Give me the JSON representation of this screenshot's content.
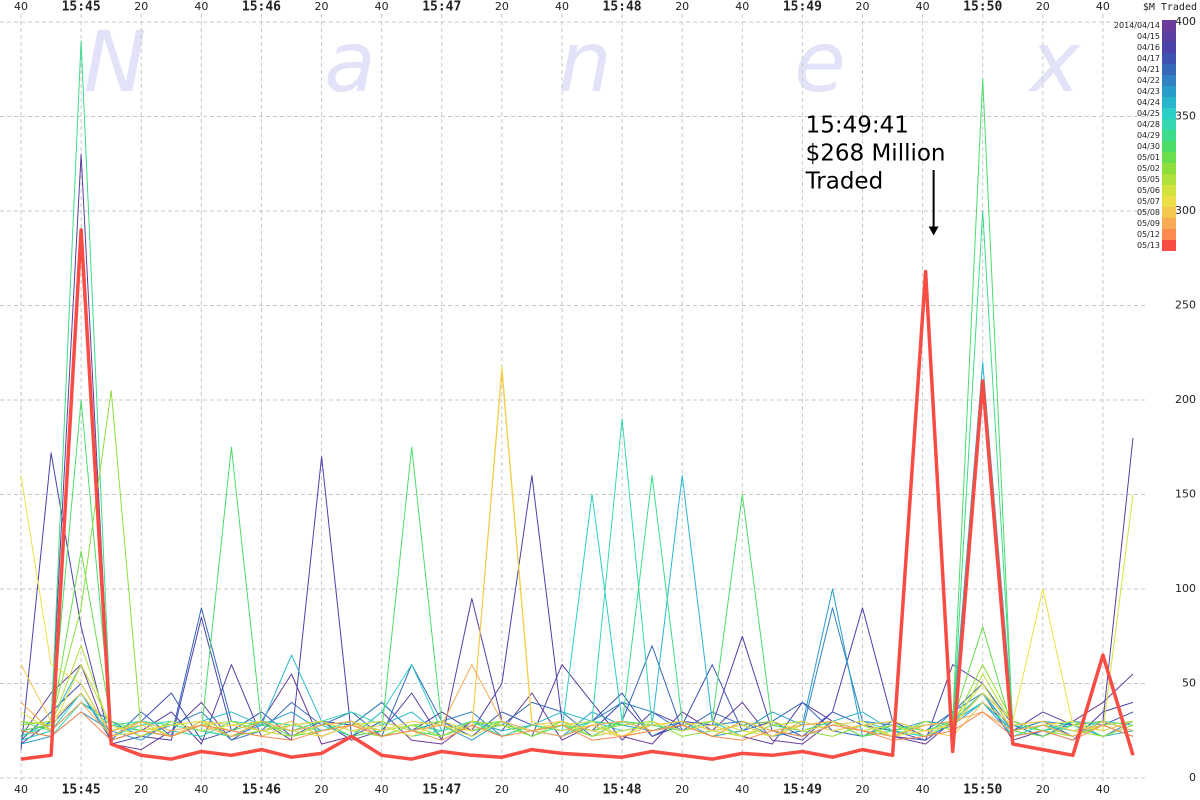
{
  "chart_data": {
    "type": "line",
    "ylabel": "$M Traded",
    "watermark": [
      "N",
      "a",
      "n",
      "e",
      "x"
    ],
    "annotation": {
      "x": "15:49:41",
      "y": 268,
      "lines": [
        "15:49:41",
        "$268 Million",
        "Traded"
      ]
    },
    "x": [
      "15:44:40",
      "15:44:50",
      "15:45:00",
      "15:45:10",
      "15:45:20",
      "15:45:30",
      "15:45:40",
      "15:45:50",
      "15:46:00",
      "15:46:10",
      "15:46:20",
      "15:46:30",
      "15:46:40",
      "15:46:50",
      "15:47:00",
      "15:47:10",
      "15:47:20",
      "15:47:30",
      "15:47:40",
      "15:47:50",
      "15:48:00",
      "15:48:10",
      "15:48:20",
      "15:48:30",
      "15:48:40",
      "15:48:50",
      "15:49:00",
      "15:49:10",
      "15:49:20",
      "15:49:30",
      "15:49:41",
      "15:49:50",
      "15:50:00",
      "15:50:10",
      "15:50:20",
      "15:50:30",
      "15:50:40",
      "15:50:50"
    ],
    "xlim": [
      "15:44:33",
      "15:50:55"
    ],
    "xticks": [
      {
        "value": "15:44:40",
        "label": "40"
      },
      {
        "value": "15:45:00",
        "label": "15:45"
      },
      {
        "value": "15:45:20",
        "label": "20"
      },
      {
        "value": "15:45:40",
        "label": "40"
      },
      {
        "value": "15:46:00",
        "label": "15:46"
      },
      {
        "value": "15:46:20",
        "label": "20"
      },
      {
        "value": "15:46:40",
        "label": "40"
      },
      {
        "value": "15:47:00",
        "label": "15:47"
      },
      {
        "value": "15:47:20",
        "label": "20"
      },
      {
        "value": "15:47:40",
        "label": "40"
      },
      {
        "value": "15:48:00",
        "label": "15:48"
      },
      {
        "value": "15:48:20",
        "label": "20"
      },
      {
        "value": "15:48:40",
        "label": "40"
      },
      {
        "value": "15:49:00",
        "label": "15:49"
      },
      {
        "value": "15:49:20",
        "label": "20"
      },
      {
        "value": "15:49:40",
        "label": "40"
      },
      {
        "value": "15:50:00",
        "label": "15:50"
      },
      {
        "value": "15:50:20",
        "label": "20"
      },
      {
        "value": "15:50:40",
        "label": "40"
      }
    ],
    "ylim": [
      0,
      400
    ],
    "yticks": [
      0,
      50,
      100,
      150,
      200,
      250,
      300,
      350,
      400
    ],
    "grid": true,
    "legend": "top-right",
    "series": [
      {
        "name": "2014/04/14",
        "color": "#6a3d9a",
        "values": [
          22,
          45,
          60,
          18,
          15,
          25,
          40,
          20,
          30,
          55,
          18,
          22,
          35,
          20,
          18,
          30,
          25,
          45,
          20,
          28,
          22,
          18,
          35,
          25,
          40,
          20,
          18,
          30,
          25,
          22,
          18,
          30,
          45,
          20,
          25,
          30,
          40,
          55
        ]
      },
      {
        "name": "04/15",
        "color": "#5a3ea0",
        "values": [
          18,
          30,
          330,
          20,
          25,
          35,
          18,
          60,
          22,
          28,
          30,
          20,
          25,
          45,
          20,
          95,
          30,
          22,
          60,
          40,
          20,
          35,
          28,
          30,
          22,
          18,
          40,
          30,
          25,
          22,
          20,
          60,
          50,
          25,
          35,
          28,
          30,
          180
        ]
      },
      {
        "name": "04/16",
        "color": "#4a42aa",
        "values": [
          15,
          172,
          80,
          18,
          22,
          20,
          85,
          25,
          30,
          20,
          170,
          22,
          30,
          25,
          35,
          25,
          50,
          160,
          30,
          25,
          40,
          22,
          30,
          28,
          75,
          25,
          20,
          35,
          90,
          30,
          22,
          28,
          45,
          30,
          25,
          20,
          35,
          40
        ]
      },
      {
        "name": "04/17",
        "color": "#3e52b2",
        "values": [
          20,
          35,
          50,
          22,
          30,
          45,
          20,
          25,
          35,
          22,
          30,
          28,
          40,
          25,
          30,
          22,
          35,
          28,
          25,
          30,
          45,
          22,
          28,
          60,
          25,
          30,
          22,
          35,
          28,
          25,
          20,
          30,
          40,
          25,
          30,
          22,
          28,
          35
        ]
      },
      {
        "name": "04/21",
        "color": "#3668b8",
        "values": [
          25,
          28,
          45,
          20,
          35,
          22,
          90,
          30,
          25,
          40,
          28,
          35,
          22,
          60,
          30,
          25,
          28,
          40,
          35,
          22,
          30,
          70,
          25,
          35,
          28,
          30,
          40,
          25,
          22,
          30,
          25,
          35,
          50,
          28,
          22,
          30,
          25,
          30
        ]
      },
      {
        "name": "04/22",
        "color": "#3082c2",
        "values": [
          20,
          25,
          40,
          30,
          22,
          28,
          35,
          20,
          25,
          30,
          22,
          28,
          40,
          25,
          30,
          35,
          22,
          28,
          25,
          30,
          40,
          35,
          25,
          28,
          30,
          22,
          25,
          90,
          30,
          28,
          22,
          35,
          45,
          25,
          30,
          28,
          22,
          30
        ]
      },
      {
        "name": "04/23",
        "color": "#2a9cca",
        "values": [
          18,
          22,
          35,
          25,
          20,
          30,
          25,
          22,
          28,
          35,
          25,
          30,
          22,
          25,
          28,
          20,
          30,
          25,
          22,
          35,
          28,
          25,
          30,
          22,
          25,
          35,
          28,
          100,
          22,
          25,
          30,
          28,
          40,
          22,
          25,
          30,
          28,
          22
        ]
      },
      {
        "name": "04/24",
        "color": "#28b6ce",
        "values": [
          22,
          30,
          60,
          28,
          25,
          22,
          30,
          35,
          28,
          65,
          30,
          25,
          28,
          35,
          22,
          30,
          25,
          28,
          35,
          30,
          25,
          28,
          160,
          30,
          22,
          28,
          25,
          30,
          35,
          25,
          22,
          28,
          220,
          30,
          25,
          28,
          22,
          25
        ]
      },
      {
        "name": "04/25",
        "color": "#2ccfc8",
        "values": [
          20,
          25,
          45,
          22,
          28,
          30,
          25,
          22,
          30,
          25,
          28,
          22,
          35,
          60,
          25,
          30,
          22,
          28,
          25,
          150,
          30,
          25,
          28,
          22,
          30,
          25,
          22,
          28,
          30,
          25,
          22,
          30,
          40,
          25,
          28,
          22,
          30,
          25
        ]
      },
      {
        "name": "04/28",
        "color": "#34d8b0",
        "values": [
          25,
          22,
          40,
          28,
          30,
          25,
          22,
          30,
          28,
          25,
          30,
          35,
          28,
          22,
          25,
          30,
          28,
          25,
          22,
          30,
          190,
          28,
          25,
          30,
          22,
          28,
          25,
          30,
          22,
          28,
          25,
          30,
          45,
          22,
          28,
          25,
          30,
          28
        ]
      },
      {
        "name": "04/29",
        "color": "#3cdc8c",
        "values": [
          22,
          28,
          390,
          25,
          30,
          28,
          25,
          22,
          30,
          28,
          25,
          30,
          22,
          28,
          25,
          30,
          22,
          28,
          25,
          30,
          28,
          160,
          30,
          25,
          28,
          22,
          30,
          25,
          28,
          22,
          30,
          25,
          300,
          28,
          25,
          30,
          22,
          28
        ]
      },
      {
        "name": "04/30",
        "color": "#4cdc6a",
        "values": [
          30,
          25,
          200,
          28,
          22,
          30,
          25,
          175,
          28,
          25,
          30,
          22,
          25,
          175,
          28,
          25,
          30,
          22,
          28,
          25,
          30,
          28,
          25,
          30,
          150,
          28,
          25,
          30,
          22,
          28,
          25,
          30,
          370,
          25,
          28,
          22,
          30,
          25
        ]
      },
      {
        "name": "05/01",
        "color": "#6ade4c",
        "values": [
          25,
          28,
          120,
          30,
          25,
          22,
          28,
          25,
          30,
          22,
          25,
          28,
          30,
          25,
          22,
          28,
          30,
          25,
          28,
          22,
          30,
          25,
          28,
          22,
          30,
          25,
          28,
          30,
          22,
          25,
          28,
          30,
          80,
          25,
          22,
          28,
          30,
          25
        ]
      },
      {
        "name": "05/02",
        "color": "#8ede3c",
        "values": [
          28,
          30,
          90,
          205,
          25,
          28,
          30,
          22,
          25,
          28,
          30,
          25,
          22,
          28,
          30,
          25,
          28,
          22,
          30,
          25,
          28,
          30,
          22,
          25,
          28,
          30,
          25,
          22,
          28,
          30,
          25,
          28,
          60,
          30,
          25,
          22,
          28,
          30
        ]
      },
      {
        "name": "05/05",
        "color": "#b0e03a",
        "values": [
          30,
          28,
          70,
          25,
          30,
          22,
          28,
          30,
          25,
          22,
          28,
          30,
          25,
          28,
          22,
          30,
          28,
          25,
          30,
          22,
          25,
          28,
          30,
          25,
          22,
          28,
          30,
          25,
          28,
          22,
          30,
          25,
          55,
          28,
          30,
          25,
          22,
          28
        ]
      },
      {
        "name": "05/06",
        "color": "#d4e23e",
        "values": [
          35,
          25,
          60,
          28,
          22,
          30,
          25,
          28,
          30,
          25,
          22,
          28,
          30,
          25,
          28,
          22,
          30,
          25,
          28,
          30,
          22,
          25,
          28,
          30,
          25,
          22,
          28,
          30,
          25,
          28,
          22,
          30,
          50,
          25,
          28,
          30,
          25,
          150
        ]
      },
      {
        "name": "05/07",
        "color": "#ecde48",
        "values": [
          160,
          60,
          50,
          22,
          25,
          28,
          30,
          25,
          22,
          28,
          30,
          25,
          28,
          22,
          30,
          25,
          218,
          30,
          25,
          28,
          22,
          30,
          25,
          28,
          22,
          30,
          25,
          28,
          30,
          22,
          25,
          28,
          45,
          30,
          100,
          28,
          25,
          30
        ]
      },
      {
        "name": "05/08",
        "color": "#f4c850",
        "values": [
          60,
          30,
          45,
          25,
          28,
          22,
          30,
          28,
          25,
          30,
          22,
          28,
          25,
          30,
          28,
          25,
          215,
          28,
          30,
          25,
          22,
          28,
          30,
          25,
          28,
          22,
          30,
          25,
          28,
          30,
          25,
          22,
          40,
          28,
          30,
          25,
          28,
          22
        ]
      },
      {
        "name": "05/09",
        "color": "#f8aa54",
        "values": [
          40,
          25,
          40,
          22,
          30,
          25,
          28,
          22,
          30,
          25,
          28,
          30,
          22,
          25,
          28,
          60,
          30,
          25,
          22,
          28,
          30,
          25,
          28,
          22,
          30,
          25,
          28,
          30,
          25,
          22,
          28,
          30,
          35,
          25,
          28,
          22,
          30,
          25
        ]
      },
      {
        "name": "05/12",
        "color": "#fa8a50",
        "values": [
          25,
          22,
          35,
          20,
          25,
          22,
          28,
          25,
          22,
          20,
          25,
          28,
          22,
          25,
          20,
          28,
          22,
          25,
          28,
          20,
          22,
          25,
          28,
          22,
          20,
          25,
          22,
          28,
          25,
          20,
          22,
          25,
          35,
          22,
          25,
          20,
          28,
          22
        ]
      },
      {
        "name": "05/13",
        "color": "#f84c44",
        "values": [
          10,
          12,
          290,
          18,
          12,
          10,
          14,
          12,
          15,
          11,
          13,
          22,
          12,
          10,
          14,
          12,
          11,
          15,
          13,
          12,
          11,
          14,
          12,
          10,
          13,
          12,
          14,
          11,
          15,
          12,
          268,
          14,
          210,
          18,
          15,
          12,
          65,
          12
        ]
      }
    ]
  }
}
